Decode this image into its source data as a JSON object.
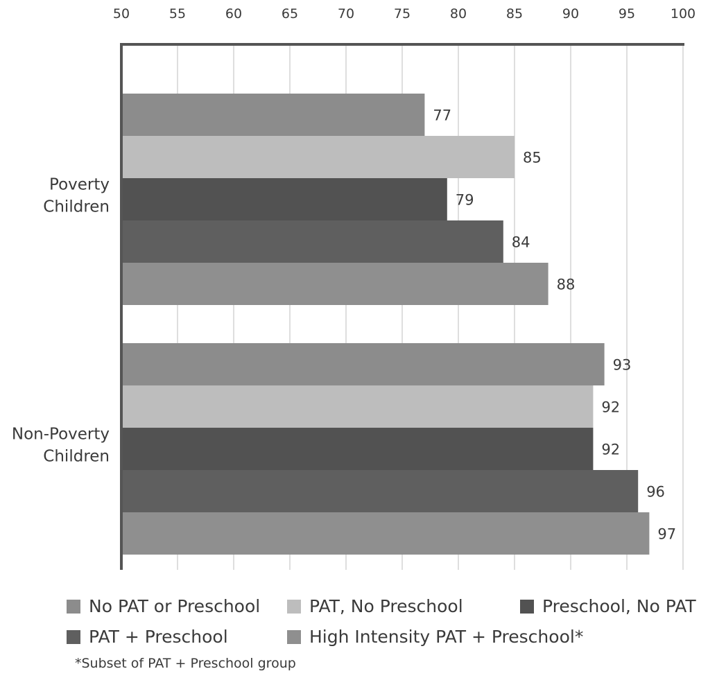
{
  "chart_data": {
    "type": "bar",
    "orientation": "horizontal",
    "xlim": [
      50,
      100
    ],
    "x_ticks": [
      "50",
      "55",
      "60",
      "65",
      "70",
      "75",
      "80",
      "85",
      "90",
      "95",
      "100"
    ],
    "grid": "vertical",
    "categories": [
      "Poverty Children",
      "Non-Poverty Children"
    ],
    "category_labels": [
      [
        "Poverty",
        "Children"
      ],
      [
        "Non-Poverty",
        "Children"
      ]
    ],
    "series": [
      {
        "name": "No PAT or Preschool",
        "color": "#8c8c8c",
        "values": [
          77,
          93
        ]
      },
      {
        "name": "PAT, No Preschool",
        "color": "#bdbdbd",
        "values": [
          85,
          92
        ]
      },
      {
        "name": "Preschool, No PAT",
        "color": "#525252",
        "values": [
          79,
          92
        ]
      },
      {
        "name": "PAT + Preschool",
        "color": "#5f5f5f",
        "values": [
          84,
          96
        ]
      },
      {
        "name": "High Intensity PAT + Preschool*",
        "color": "#8f8f8f",
        "values": [
          88,
          97
        ]
      }
    ],
    "value_labels": [
      [
        "77",
        "93"
      ],
      [
        "85",
        "92"
      ],
      [
        "79",
        "92"
      ],
      [
        "84",
        "96"
      ],
      [
        "88",
        "97"
      ]
    ],
    "legend_position": "bottom",
    "footnote": "*Subset of PAT + Preschool group"
  },
  "legend": [
    {
      "label": "No PAT or Preschool",
      "color": "#8c8c8c"
    },
    {
      "label": "PAT, No Preschool",
      "color": "#bdbdbd"
    },
    {
      "label": "Preschool, No PAT",
      "color": "#525252"
    },
    {
      "label": "PAT + Preschool",
      "color": "#5f5f5f"
    },
    {
      "label": "High Intensity PAT + Preschool*",
      "color": "#8f8f8f"
    }
  ]
}
